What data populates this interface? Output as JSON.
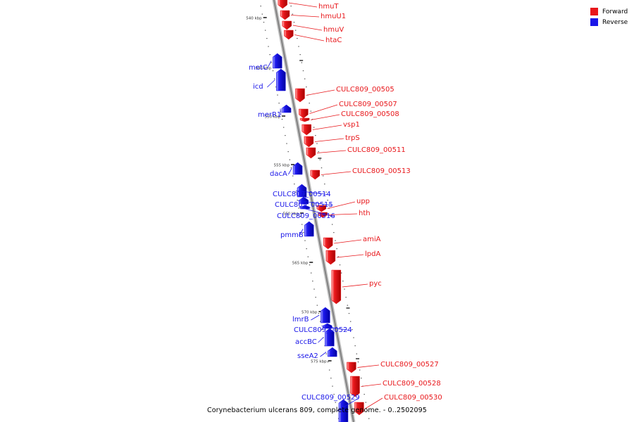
{
  "legend": {
    "forward": {
      "label": "Forward",
      "color": "#e8171b"
    },
    "reverse": {
      "label": "Reverse",
      "color": "#1a16e8"
    }
  },
  "caption": "Corynebacterium ulcerans 809, complete genome. - 0..2502095",
  "ticks": [
    {
      "label": "540 kbp",
      "kbp": 540
    },
    {
      "label": "545 kbp",
      "kbp": 545
    },
    {
      "label": "550 kbp",
      "kbp": 550
    },
    {
      "label": "555 kbp",
      "kbp": 555
    },
    {
      "label": "560 kbp",
      "kbp": 560
    },
    {
      "label": "565 kbp",
      "kbp": 565
    },
    {
      "label": "570 kbp",
      "kbp": 570
    },
    {
      "label": "575 kbp",
      "kbp": 575
    }
  ],
  "genes": [
    {
      "name": "hmuT",
      "strand": "forward"
    },
    {
      "name": "hmuU1",
      "strand": "forward"
    },
    {
      "name": "hmuV",
      "strand": "forward"
    },
    {
      "name": "htaC",
      "strand": "forward"
    },
    {
      "name": "metC",
      "strand": "reverse"
    },
    {
      "name": "icd",
      "strand": "reverse"
    },
    {
      "name": "CULC809_00505",
      "strand": "forward"
    },
    {
      "name": "CULC809_00507",
      "strand": "forward"
    },
    {
      "name": "merR1",
      "strand": "reverse"
    },
    {
      "name": "CULC809_00508",
      "strand": "forward"
    },
    {
      "name": "vsp1",
      "strand": "forward"
    },
    {
      "name": "trpS",
      "strand": "forward"
    },
    {
      "name": "CULC809_00511",
      "strand": "forward"
    },
    {
      "name": "dacA",
      "strand": "reverse"
    },
    {
      "name": "CULC809_00513",
      "strand": "forward"
    },
    {
      "name": "CULC809_00514",
      "strand": "reverse"
    },
    {
      "name": "CULC809_00515",
      "strand": "reverse"
    },
    {
      "name": "CULC809_00516",
      "strand": "reverse"
    },
    {
      "name": "upp",
      "strand": "forward"
    },
    {
      "name": "hth",
      "strand": "forward"
    },
    {
      "name": "pmmB",
      "strand": "reverse"
    },
    {
      "name": "amiA",
      "strand": "forward"
    },
    {
      "name": "lpdA",
      "strand": "forward"
    },
    {
      "name": "pyc",
      "strand": "forward"
    },
    {
      "name": "lmrB",
      "strand": "reverse"
    },
    {
      "name": "CULC809_00524",
      "strand": "reverse"
    },
    {
      "name": "accBC",
      "strand": "reverse"
    },
    {
      "name": "sseA2",
      "strand": "reverse"
    },
    {
      "name": "CULC809_00527",
      "strand": "forward"
    },
    {
      "name": "CULC809_00528",
      "strand": "forward"
    },
    {
      "name": "CULC809_00529",
      "strand": "reverse"
    },
    {
      "name": "CULC809_00530",
      "strand": "forward"
    }
  ]
}
